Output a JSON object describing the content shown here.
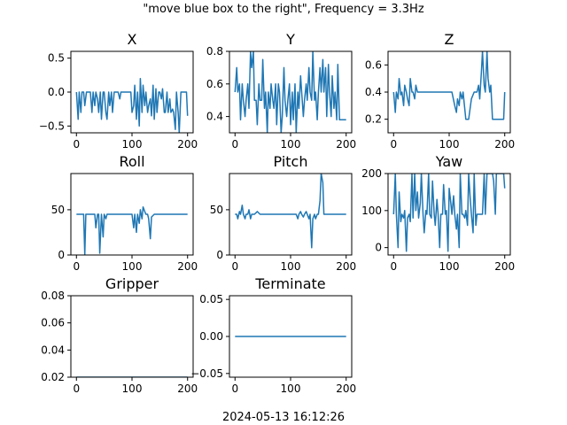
{
  "figure": {
    "suptitle": "\"move blue box to the right\", Frequency = 3.3Hz",
    "footer": "2024-05-13 16:12:26",
    "line_color": "#1f77b4"
  },
  "chart_data": [
    {
      "type": "line",
      "title": "X",
      "xlim": [
        -10,
        210
      ],
      "ylim": [
        -0.6,
        0.6
      ],
      "xticks": [
        0,
        100,
        200
      ],
      "xtick_labels": [
        "0",
        "100",
        "200"
      ],
      "yticks": [
        -0.5,
        0.0,
        0.5
      ],
      "ytick_labels": [
        "−0.5",
        "0.0",
        "0.5"
      ],
      "x": [
        0,
        3,
        5,
        8,
        10,
        13,
        15,
        18,
        20,
        23,
        25,
        28,
        30,
        33,
        35,
        38,
        40,
        43,
        45,
        48,
        50,
        53,
        55,
        58,
        60,
        63,
        65,
        68,
        70,
        73,
        75,
        78,
        80,
        83,
        85,
        88,
        90,
        93,
        95,
        98,
        100,
        103,
        105,
        108,
        110,
        113,
        115,
        118,
        120,
        123,
        125,
        128,
        130,
        133,
        135,
        138,
        140,
        143,
        145,
        148,
        150,
        153,
        155,
        158,
        160,
        163,
        165,
        168,
        170,
        173,
        175,
        178,
        180,
        183,
        185,
        188,
        190,
        193,
        195,
        198,
        200
      ],
      "y": [
        0.0,
        -0.4,
        0.0,
        -0.3,
        0.0,
        0.0,
        -0.2,
        0.0,
        0.0,
        0.0,
        0.0,
        -0.3,
        0.0,
        -0.2,
        0.0,
        -0.1,
        -0.3,
        0.0,
        -0.4,
        0.0,
        0.0,
        -0.3,
        -0.4,
        0.0,
        -0.2,
        0.0,
        -0.3,
        0.0,
        0.0,
        0.0,
        0.0,
        -0.1,
        0.0,
        0.0,
        0.0,
        0.0,
        0.0,
        0.0,
        0.0,
        0.0,
        -0.3,
        -0.2,
        0.1,
        -0.4,
        0.0,
        -0.5,
        0.2,
        -0.3,
        0.1,
        -0.2,
        0.0,
        -0.3,
        -0.2,
        -0.1,
        -0.35,
        0.1,
        -0.4,
        0.05,
        -0.3,
        0.0,
        0.0,
        -0.1,
        0.05,
        -0.3,
        -0.3,
        0.0,
        -0.3,
        -0.1,
        -0.3,
        -0.25,
        -0.3,
        -0.55,
        0.0,
        -0.3,
        -0.6,
        0.0,
        0.0,
        0.0,
        0.0,
        0.0,
        -0.35
      ],
      "grid": false
    },
    {
      "type": "line",
      "title": "Y",
      "xlim": [
        -10,
        210
      ],
      "ylim": [
        0.3,
        0.8
      ],
      "xticks": [
        0,
        100,
        200
      ],
      "xtick_labels": [
        "0",
        "100",
        "200"
      ],
      "yticks": [
        0.4,
        0.6,
        0.8
      ],
      "ytick_labels": [
        "0.4",
        "0.6",
        "0.8"
      ],
      "x": [
        0,
        3,
        5,
        8,
        10,
        13,
        15,
        18,
        20,
        23,
        25,
        28,
        30,
        33,
        35,
        38,
        40,
        43,
        45,
        48,
        50,
        53,
        55,
        58,
        60,
        63,
        65,
        68,
        70,
        73,
        75,
        78,
        80,
        83,
        85,
        88,
        90,
        93,
        95,
        98,
        100,
        103,
        105,
        108,
        110,
        113,
        115,
        118,
        120,
        123,
        125,
        128,
        130,
        133,
        135,
        138,
        140,
        143,
        145,
        148,
        150,
        153,
        155,
        158,
        160,
        163,
        165,
        168,
        170,
        173,
        175,
        178,
        180,
        183,
        185,
        188,
        190,
        193,
        195,
        198,
        200
      ],
      "y": [
        0.55,
        0.7,
        0.55,
        0.6,
        0.38,
        0.6,
        0.5,
        0.4,
        0.5,
        0.6,
        0.45,
        0.8,
        0.7,
        0.8,
        0.5,
        0.5,
        0.35,
        0.6,
        0.5,
        0.5,
        0.75,
        0.45,
        0.55,
        0.3,
        0.55,
        0.45,
        0.6,
        0.5,
        0.45,
        0.6,
        0.35,
        0.6,
        0.55,
        0.3,
        0.4,
        0.7,
        0.5,
        0.4,
        0.5,
        0.6,
        0.35,
        0.55,
        0.38,
        0.6,
        0.3,
        0.55,
        0.45,
        0.65,
        0.55,
        0.4,
        0.5,
        0.6,
        0.5,
        0.7,
        0.55,
        0.5,
        0.8,
        0.5,
        0.55,
        0.38,
        0.55,
        0.7,
        0.55,
        0.75,
        0.55,
        0.7,
        0.4,
        0.72,
        0.55,
        0.4,
        0.65,
        0.45,
        0.55,
        0.38,
        0.72,
        0.38,
        0.38,
        0.38,
        0.38,
        0.38,
        0.38
      ],
      "grid": false
    },
    {
      "type": "line",
      "title": "Z",
      "xlim": [
        -10,
        210
      ],
      "ylim": [
        0.1,
        0.7
      ],
      "xticks": [
        0,
        100,
        200
      ],
      "xtick_labels": [
        "0",
        "100",
        "200"
      ],
      "yticks": [
        0.2,
        0.4,
        0.6
      ],
      "ytick_labels": [
        "0.2",
        "0.4",
        "0.6"
      ],
      "x": [
        0,
        3,
        5,
        8,
        10,
        13,
        15,
        18,
        20,
        23,
        25,
        28,
        30,
        33,
        35,
        38,
        40,
        43,
        45,
        48,
        50,
        55,
        60,
        65,
        70,
        75,
        80,
        85,
        90,
        95,
        100,
        105,
        110,
        113,
        115,
        118,
        120,
        123,
        125,
        130,
        135,
        140,
        145,
        150,
        153,
        155,
        158,
        160,
        163,
        165,
        168,
        170,
        173,
        175,
        178,
        180,
        185,
        190,
        195,
        198,
        200
      ],
      "y": [
        0.4,
        0.25,
        0.4,
        0.35,
        0.5,
        0.38,
        0.4,
        0.3,
        0.45,
        0.4,
        0.35,
        0.3,
        0.5,
        0.4,
        0.4,
        0.35,
        0.45,
        0.4,
        0.4,
        0.4,
        0.4,
        0.4,
        0.4,
        0.4,
        0.4,
        0.4,
        0.4,
        0.4,
        0.4,
        0.4,
        0.4,
        0.4,
        0.3,
        0.25,
        0.35,
        0.3,
        0.4,
        0.35,
        0.4,
        0.2,
        0.2,
        0.35,
        0.4,
        0.4,
        0.45,
        0.35,
        0.55,
        0.7,
        0.45,
        0.4,
        0.7,
        0.5,
        0.4,
        0.45,
        0.2,
        0.2,
        0.2,
        0.2,
        0.2,
        0.2,
        0.4
      ],
      "grid": false
    },
    {
      "type": "line",
      "title": "Roll",
      "xlim": [
        -10,
        210
      ],
      "ylim": [
        0,
        90
      ],
      "xticks": [
        0,
        100,
        200
      ],
      "xtick_labels": [
        "0",
        "100",
        "200"
      ],
      "yticks": [
        0,
        50
      ],
      "ytick_labels": [
        "0",
        "50"
      ],
      "x": [
        0,
        5,
        10,
        13,
        15,
        17,
        20,
        25,
        30,
        33,
        35,
        38,
        40,
        42,
        45,
        48,
        50,
        53,
        55,
        60,
        65,
        70,
        75,
        80,
        85,
        90,
        95,
        100,
        103,
        105,
        108,
        110,
        113,
        115,
        118,
        120,
        123,
        125,
        128,
        130,
        133,
        135,
        140,
        145,
        150,
        155,
        160,
        165,
        170,
        175,
        180,
        185,
        190,
        195,
        200
      ],
      "y": [
        45,
        45,
        45,
        45,
        0,
        45,
        45,
        45,
        45,
        45,
        30,
        45,
        45,
        2,
        45,
        20,
        45,
        40,
        45,
        45,
        45,
        45,
        45,
        45,
        45,
        45,
        45,
        45,
        30,
        45,
        25,
        45,
        35,
        50,
        40,
        53,
        48,
        45,
        45,
        40,
        18,
        42,
        45,
        45,
        45,
        45,
        45,
        45,
        45,
        45,
        45,
        45,
        45,
        45,
        45
      ],
      "grid": false
    },
    {
      "type": "line",
      "title": "Pitch",
      "xlim": [
        -10,
        210
      ],
      "ylim": [
        0,
        90
      ],
      "xticks": [
        0,
        100,
        200
      ],
      "xtick_labels": [
        "0",
        "100",
        "200"
      ],
      "yticks": [
        0,
        50
      ],
      "ytick_labels": [
        "0",
        "50"
      ],
      "x": [
        0,
        3,
        5,
        8,
        10,
        13,
        15,
        18,
        20,
        23,
        25,
        28,
        30,
        35,
        40,
        45,
        50,
        55,
        60,
        65,
        70,
        75,
        80,
        85,
        90,
        95,
        100,
        105,
        110,
        113,
        115,
        118,
        120,
        123,
        125,
        128,
        130,
        133,
        135,
        138,
        140,
        143,
        145,
        148,
        150,
        153,
        155,
        158,
        160,
        165,
        170,
        175,
        180,
        185,
        190,
        195,
        200
      ],
      "y": [
        45,
        45,
        40,
        48,
        45,
        55,
        45,
        40,
        45,
        45,
        50,
        40,
        45,
        45,
        48,
        45,
        45,
        45,
        45,
        45,
        45,
        45,
        45,
        45,
        45,
        45,
        45,
        45,
        45,
        40,
        45,
        48,
        45,
        42,
        45,
        48,
        45,
        40,
        45,
        8,
        40,
        45,
        40,
        45,
        45,
        60,
        90,
        80,
        45,
        45,
        45,
        45,
        45,
        45,
        45,
        45,
        45
      ],
      "grid": false
    },
    {
      "type": "line",
      "title": "Yaw",
      "xlim": [
        -10,
        210
      ],
      "ylim": [
        -20,
        200
      ],
      "xticks": [
        0,
        100,
        200
      ],
      "xtick_labels": [
        "0",
        "100",
        "200"
      ],
      "yticks": [
        0,
        100,
        200
      ],
      "ytick_labels": [
        "0",
        "100",
        "200"
      ],
      "x": [
        0,
        3,
        5,
        8,
        10,
        13,
        15,
        18,
        20,
        23,
        25,
        28,
        30,
        33,
        35,
        38,
        40,
        43,
        45,
        48,
        50,
        53,
        55,
        58,
        60,
        63,
        65,
        68,
        70,
        73,
        75,
        78,
        80,
        83,
        85,
        88,
        90,
        93,
        95,
        98,
        100,
        103,
        105,
        108,
        110,
        113,
        115,
        118,
        120,
        123,
        125,
        128,
        130,
        133,
        135,
        138,
        140,
        143,
        145,
        148,
        150,
        153,
        155,
        158,
        160,
        163,
        165,
        168,
        170,
        173,
        175,
        178,
        180,
        183,
        185,
        188,
        190,
        193,
        195,
        198,
        200
      ],
      "y": [
        90,
        200,
        90,
        0,
        150,
        70,
        90,
        80,
        100,
        -10,
        80,
        90,
        70,
        200,
        80,
        200,
        100,
        150,
        80,
        120,
        200,
        90,
        40,
        100,
        90,
        200,
        90,
        80,
        180,
        90,
        60,
        130,
        90,
        0,
        90,
        90,
        170,
        90,
        100,
        -10,
        160,
        120,
        90,
        140,
        90,
        50,
        90,
        0,
        200,
        90,
        90,
        80,
        100,
        60,
        200,
        130,
        90,
        40,
        200,
        60,
        90,
        90,
        90,
        90,
        90,
        200,
        90,
        200,
        200,
        200,
        200,
        200,
        180,
        90,
        200,
        200,
        200,
        200,
        200,
        200,
        160
      ],
      "grid": false
    },
    {
      "type": "line",
      "title": "Gripper",
      "xlim": [
        -10,
        210
      ],
      "ylim": [
        0.02,
        0.08
      ],
      "xticks": [
        0,
        100,
        200
      ],
      "xtick_labels": [
        "0",
        "100",
        "200"
      ],
      "yticks": [
        0.02,
        0.04,
        0.06,
        0.08
      ],
      "ytick_labels": [
        "0.02",
        "0.04",
        "0.06",
        "0.08"
      ],
      "x": [
        0,
        200
      ],
      "y": [
        0.02,
        0.02
      ],
      "grid": false
    },
    {
      "type": "line",
      "title": "Terminate",
      "xlim": [
        -10,
        210
      ],
      "ylim": [
        -0.055,
        0.055
      ],
      "xticks": [
        0,
        100,
        200
      ],
      "xtick_labels": [
        "0",
        "100",
        "200"
      ],
      "yticks": [
        -0.05,
        0.0,
        0.05
      ],
      "ytick_labels": [
        "−0.05",
        "0.00",
        "0.05"
      ],
      "x": [
        0,
        200
      ],
      "y": [
        0.0,
        0.0
      ],
      "grid": false
    }
  ]
}
